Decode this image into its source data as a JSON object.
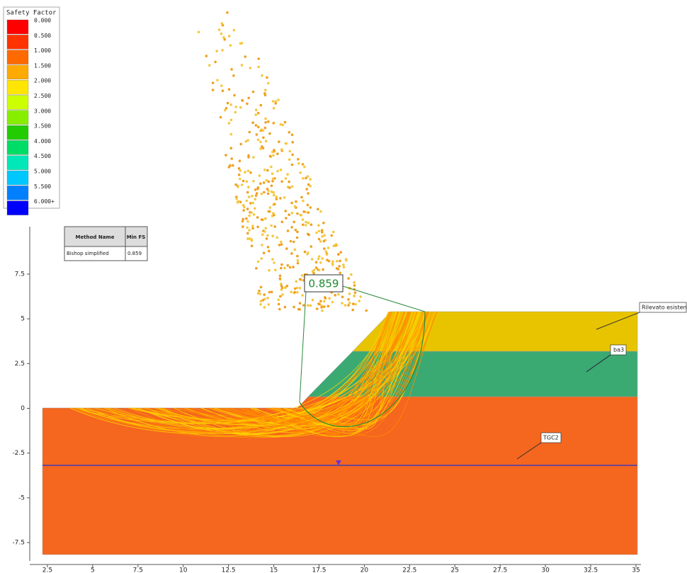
{
  "legend": {
    "title": "Safety Factor",
    "entries": [
      "0.000",
      "0.500",
      "1.000",
      "1.500",
      "2.000",
      "2.500",
      "3.000",
      "3.500",
      "4.000",
      "4.500",
      "5.000",
      "5.500",
      "6.000+"
    ],
    "colors": [
      "#ff0000",
      "#ff3300",
      "#ff6a00",
      "#ffaa00",
      "#ffe600",
      "#ccff00",
      "#88ee00",
      "#22cc00",
      "#00dd66",
      "#00e8b8",
      "#00c8ff",
      "#0080ff",
      "#0000ff"
    ]
  },
  "table": {
    "header": [
      "Method Name",
      "Min FS"
    ],
    "rows": [
      [
        "Bishop simplified",
        "0.859"
      ]
    ]
  },
  "min_fs_label": "0.859",
  "material_labels": [
    "Rilevato esistente",
    "ba3",
    "TGC2"
  ],
  "x_axis": {
    "ticks": [
      2.5,
      5,
      7.5,
      10,
      12.5,
      15,
      17.5,
      20,
      22.5,
      25,
      27.5,
      30,
      32.5,
      35
    ]
  },
  "y_axis": {
    "ticks": [
      7.5,
      5,
      2.5,
      0,
      -2.5,
      -5,
      -7.5
    ]
  }
}
